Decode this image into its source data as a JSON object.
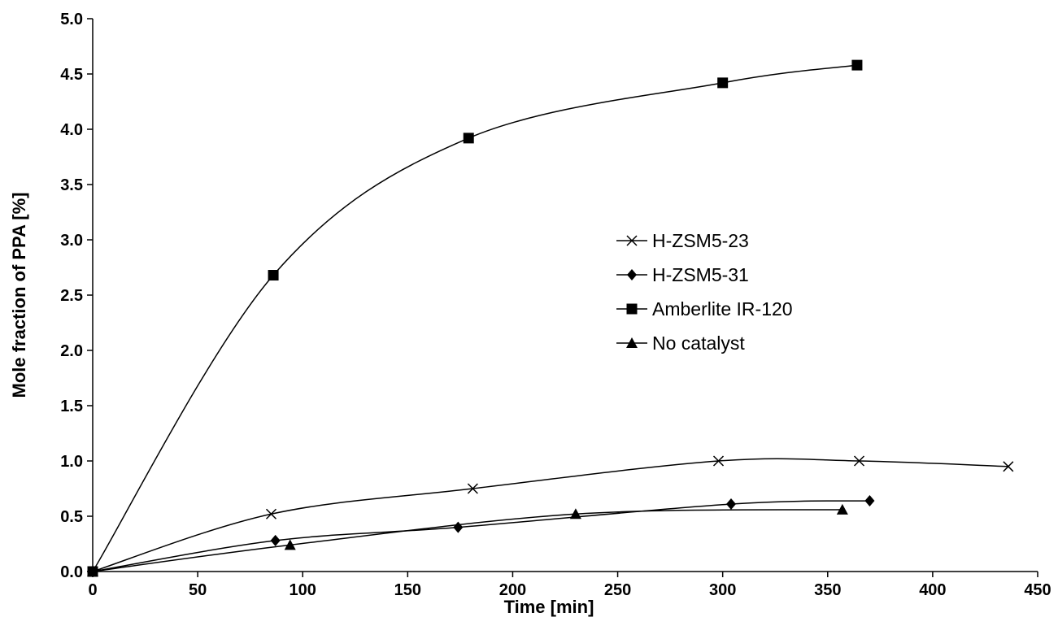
{
  "chart_data": {
    "type": "line",
    "title": "",
    "xlabel": "Time [min]",
    "ylabel": "Mole fraction of PPA [%]",
    "xlim": [
      0,
      450
    ],
    "ylim": [
      0,
      5.0
    ],
    "x_ticks": [
      "0",
      "50",
      "100",
      "150",
      "200",
      "250",
      "300",
      "350",
      "400",
      "450"
    ],
    "y_ticks": [
      "0.0",
      "0.5",
      "1.0",
      "1.5",
      "2.0",
      "2.5",
      "3.0",
      "3.5",
      "4.0",
      "4.5",
      "5.0"
    ],
    "grid": false,
    "legend_position": "center-right",
    "colors": {
      "line": "#000000",
      "marker": "#000000",
      "axis": "#000000"
    },
    "series": [
      {
        "name": "H-ZSM5-23",
        "marker": "x",
        "points": [
          [
            0,
            0.0
          ],
          [
            85,
            0.52
          ],
          [
            181,
            0.75
          ],
          [
            298,
            1.0
          ],
          [
            365,
            1.0
          ],
          [
            436,
            0.95
          ]
        ]
      },
      {
        "name": "H-ZSM5-31",
        "marker": "diamond",
        "points": [
          [
            0,
            0.0
          ],
          [
            87,
            0.28
          ],
          [
            174,
            0.4
          ],
          [
            304,
            0.61
          ],
          [
            370,
            0.64
          ]
        ]
      },
      {
        "name": "Amberlite IR-120",
        "marker": "square",
        "points": [
          [
            0,
            0.0
          ],
          [
            86,
            2.68
          ],
          [
            179,
            3.92
          ],
          [
            300,
            4.42
          ],
          [
            364,
            4.58
          ]
        ]
      },
      {
        "name": "No catalyst",
        "marker": "triangle",
        "points": [
          [
            0,
            0.0
          ],
          [
            94,
            0.24
          ],
          [
            230,
            0.52
          ],
          [
            357,
            0.56
          ]
        ]
      }
    ]
  }
}
